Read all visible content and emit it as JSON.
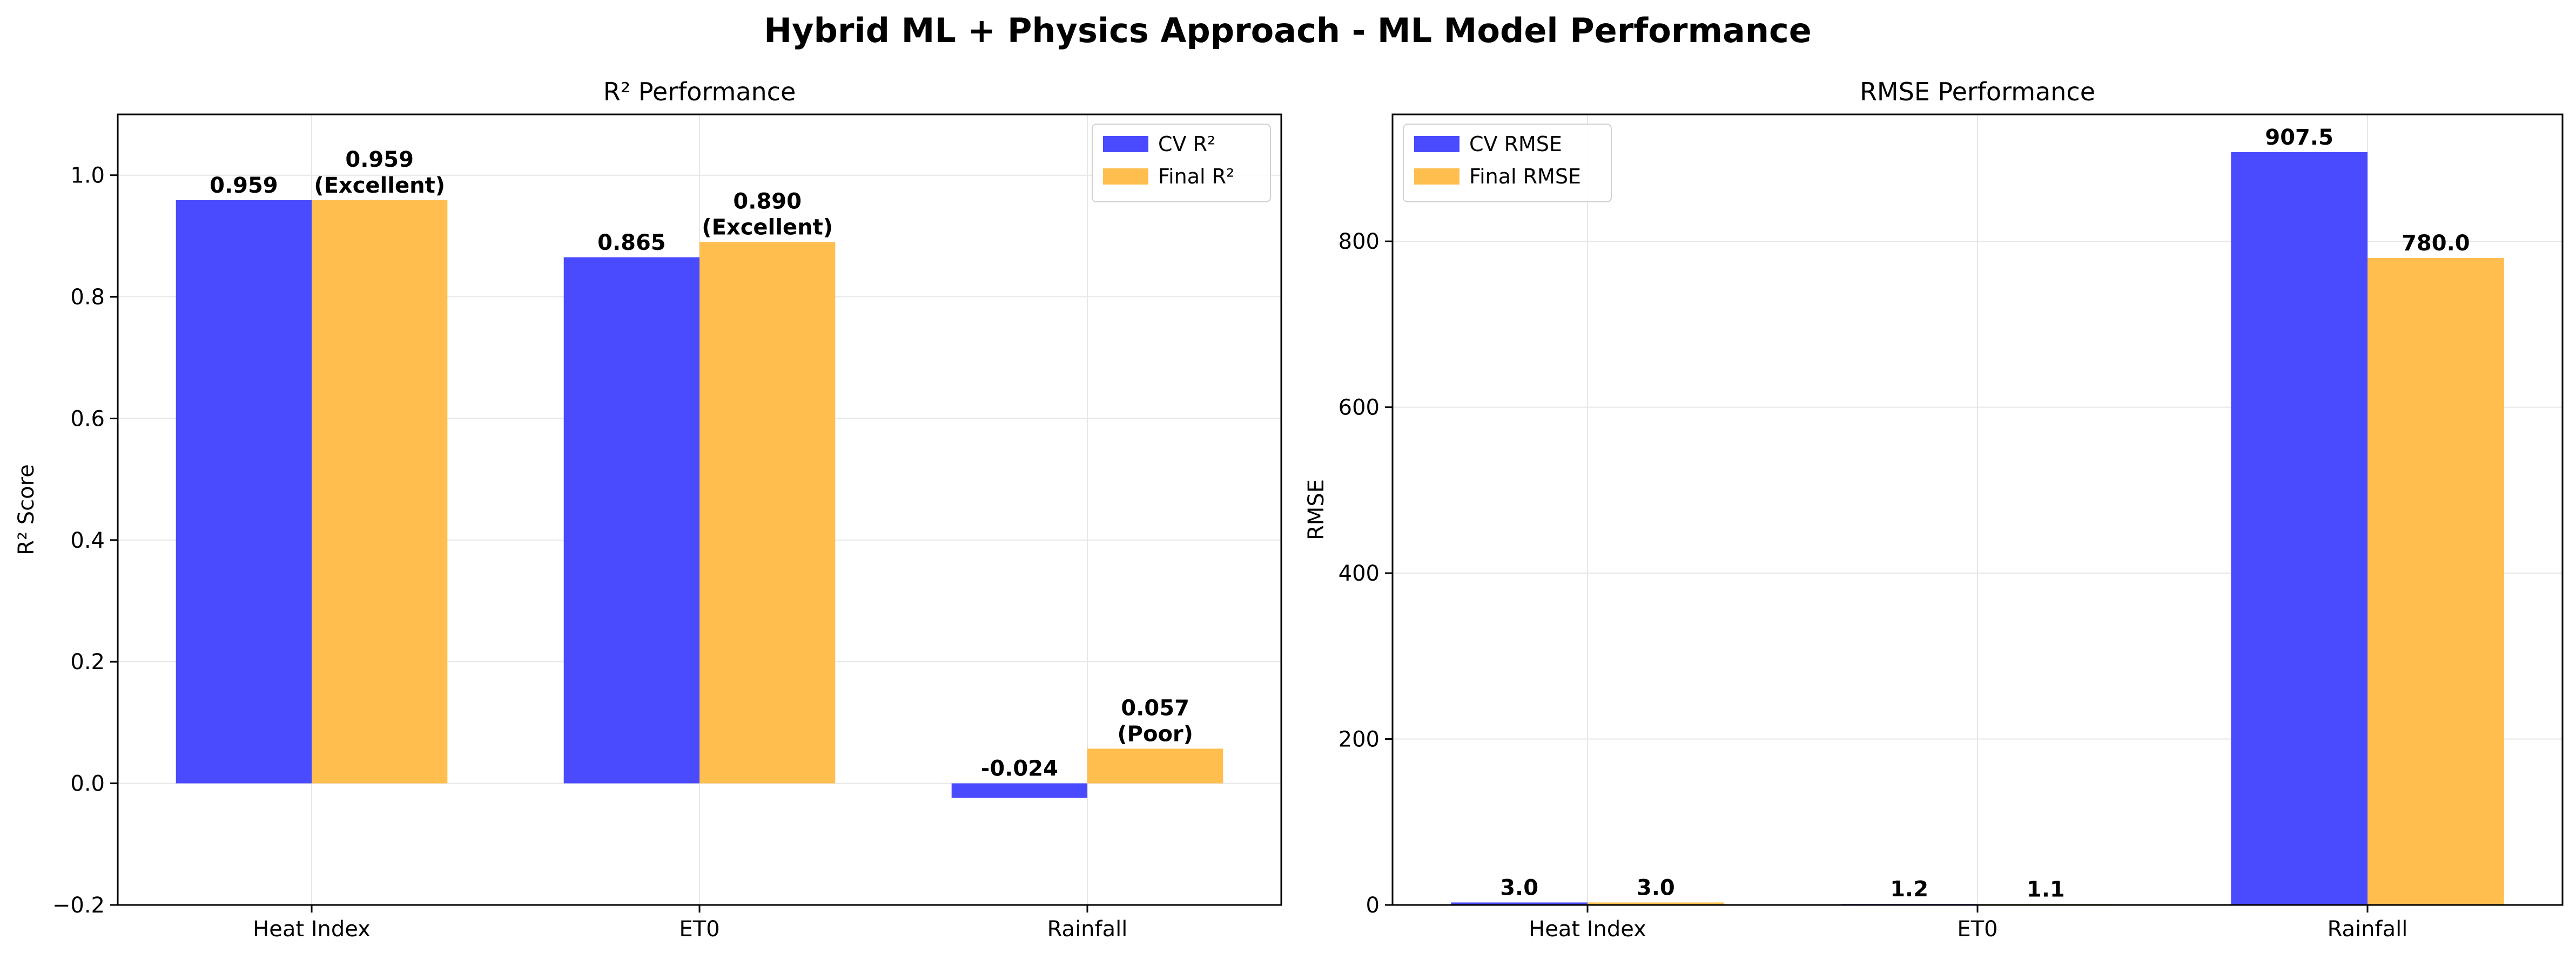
{
  "figure": {
    "title": "Hybrid ML + Physics Approach - ML Model Performance"
  },
  "colors": {
    "cv": "#4a4aff",
    "final": "#ffbe4d"
  },
  "chart_data": [
    {
      "type": "bar",
      "title": "R² Performance",
      "xlabel": "",
      "ylabel": "R² Score",
      "categories": [
        "Heat Index",
        "ET0",
        "Rainfall"
      ],
      "ylim": [
        -0.2,
        1.1
      ],
      "yticks": [
        -0.2,
        0.0,
        0.2,
        0.4,
        0.6,
        0.8,
        1.0
      ],
      "ytick_labels": [
        "−0.2",
        "0.0",
        "0.2",
        "0.4",
        "0.6",
        "0.8",
        "1.0"
      ],
      "grid": true,
      "legend": "top-right",
      "series": [
        {
          "name": "CV R²",
          "values": [
            0.959,
            0.865,
            -0.024
          ],
          "labels": [
            "0.959",
            "0.865",
            "-0.024"
          ]
        },
        {
          "name": "Final R²",
          "values": [
            0.959,
            0.89,
            0.057
          ],
          "labels": [
            "0.959\n(Excellent)",
            "0.890\n(Excellent)",
            "0.057\n(Poor)"
          ]
        }
      ]
    },
    {
      "type": "bar",
      "title": "RMSE Performance",
      "xlabel": "",
      "ylabel": "RMSE",
      "categories": [
        "Heat Index",
        "ET0",
        "Rainfall"
      ],
      "ylim": [
        0,
        953
      ],
      "yticks": [
        0,
        200,
        400,
        600,
        800
      ],
      "ytick_labels": [
        "0",
        "200",
        "400",
        "600",
        "800"
      ],
      "grid": true,
      "legend": "top-left",
      "series": [
        {
          "name": "CV RMSE",
          "values": [
            3.0,
            1.2,
            907.5
          ],
          "labels": [
            "3.0",
            "1.2",
            "907.5"
          ]
        },
        {
          "name": "Final RMSE",
          "values": [
            3.0,
            1.1,
            780.0
          ],
          "labels": [
            "3.0",
            "1.1",
            "780.0"
          ]
        }
      ]
    }
  ]
}
